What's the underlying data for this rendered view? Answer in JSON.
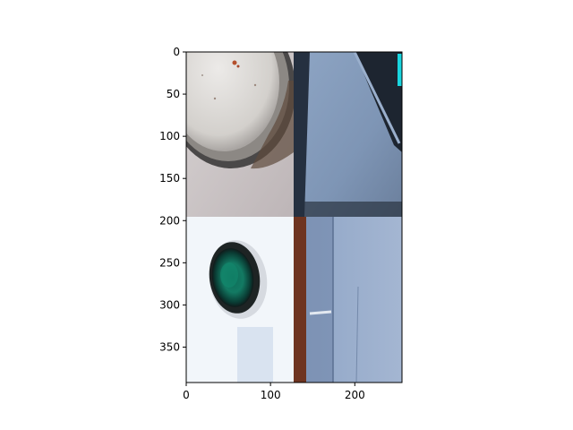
{
  "figure": {
    "image_width": 256,
    "image_height": 392,
    "x_ticks": [
      0,
      100,
      200
    ],
    "y_ticks": [
      0,
      50,
      100,
      150,
      200,
      250,
      300,
      350
    ],
    "panels": [
      {
        "name": "top-left",
        "subject": "white round lens cap with rusty flecks and metal rim on grey surface"
      },
      {
        "name": "top-right",
        "subject": "blue-grey fabric case interior with dark edge"
      },
      {
        "name": "bottom-left",
        "subject": "black lens with green glass element on white background"
      },
      {
        "name": "bottom-right",
        "subject": "blue textured fabric with brown wooden strip on left"
      }
    ]
  }
}
